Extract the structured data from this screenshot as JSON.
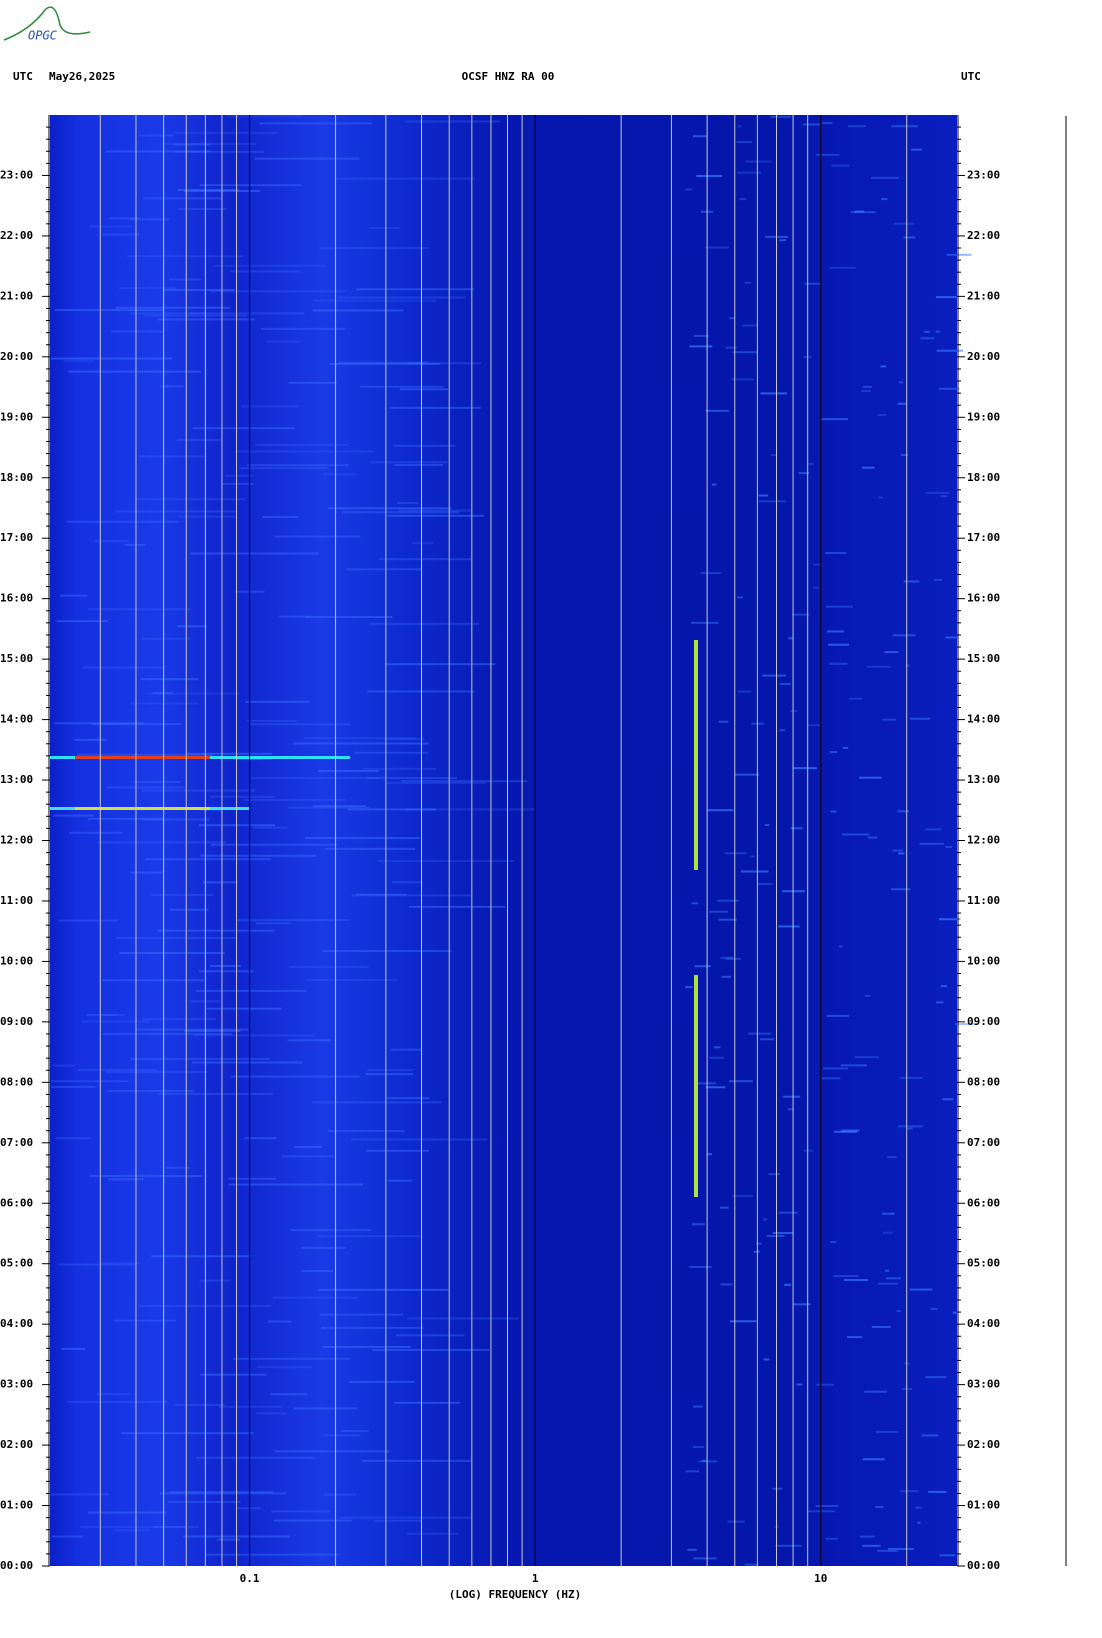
{
  "chart_data": {
    "type": "spectrogram",
    "logo": "OPGC",
    "title": "OCSF HNZ RA 00",
    "left_label": "UTC",
    "date": "May26,2025",
    "right_label": "UTC",
    "xlabel": "(LOG) FREQUENCY (HZ)",
    "xscale": "log",
    "xlim": [
      0.02,
      30
    ],
    "xticks": [
      0.1,
      1,
      10
    ],
    "xminorticks": [
      0.03,
      0.04,
      0.05,
      0.06,
      0.07,
      0.08,
      0.09,
      0.2,
      0.3,
      0.4,
      0.5,
      0.6,
      0.7,
      0.8,
      0.9,
      2,
      3,
      4,
      5,
      6,
      7,
      8,
      9,
      20
    ],
    "ylim": [
      0,
      24
    ],
    "yticks": [
      {
        "value": 0,
        "label": "00:00"
      },
      {
        "value": 1,
        "label": "01:00"
      },
      {
        "value": 2,
        "label": "02:00"
      },
      {
        "value": 3,
        "label": "03:00"
      },
      {
        "value": 4,
        "label": "04:00"
      },
      {
        "value": 5,
        "label": "05:00"
      },
      {
        "value": 6,
        "label": "06:00"
      },
      {
        "value": 7,
        "label": "07:00"
      },
      {
        "value": 8,
        "label": "08:00"
      },
      {
        "value": 9,
        "label": "09:00"
      },
      {
        "value": 10,
        "label": "10:00"
      },
      {
        "value": 11,
        "label": "11:00"
      },
      {
        "value": 12,
        "label": "12:00"
      },
      {
        "value": 13,
        "label": "13:00"
      },
      {
        "value": 14,
        "label": "14:00"
      },
      {
        "value": 15,
        "label": "15:00"
      },
      {
        "value": 16,
        "label": "16:00"
      },
      {
        "value": 17,
        "label": "17:00"
      },
      {
        "value": 18,
        "label": "18:00"
      },
      {
        "value": 19,
        "label": "19:00"
      },
      {
        "value": 20,
        "label": "20:00"
      },
      {
        "value": 21,
        "label": "21:00"
      },
      {
        "value": 22,
        "label": "22:00"
      },
      {
        "value": 23,
        "label": "23:00"
      }
    ],
    "grid": true,
    "color": "#1122d8"
  }
}
